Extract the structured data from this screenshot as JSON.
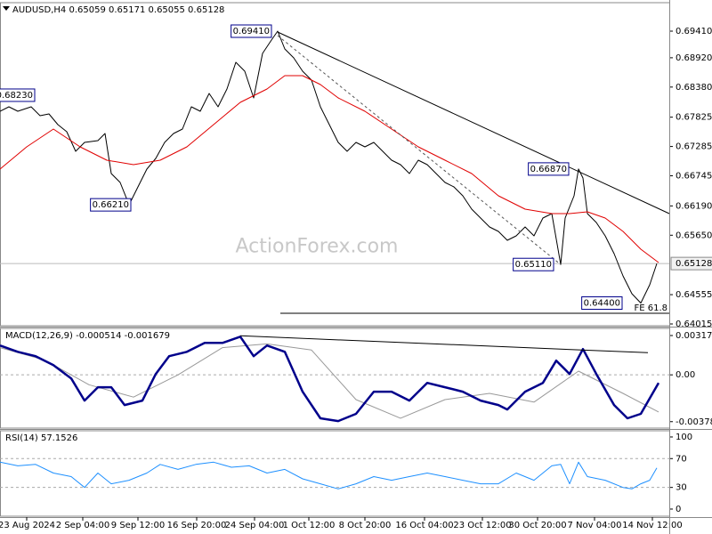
{
  "chart_data": [
    {
      "type": "line",
      "title": "AUDUSD,H4 0.65059 0.65171 0.65055 0.65128",
      "watermark": "ActionForex.com",
      "xlim": [
        0,
        376
      ],
      "ylim": [
        0.63982,
        0.69935
      ],
      "yticks": [
        {
          "value": 0.6941,
          "label": "0.69410"
        },
        {
          "value": 0.6892,
          "label": "0.68920"
        },
        {
          "value": 0.6838,
          "label": "0.68380"
        },
        0.67825,
        0.67285,
        0.66745,
        {
          "value": 0.6619,
          "label": "0.66190"
        },
        {
          "value": 0.6565,
          "label": "0.65650"
        },
        0.64555,
        0.64015
      ],
      "last_price": 0.65128,
      "series": [
        {
          "color": "#000000",
          "width": 1,
          "x": [
            0,
            5,
            10,
            17.5,
            22.5,
            27.5,
            32.5,
            37.5,
            42.5,
            47.5,
            55,
            59,
            62.5,
            67.5,
            72.5,
            77.5,
            82.5,
            87.5,
            92.5,
            97.5,
            102.5,
            107.5,
            112.5,
            117.5,
            122.5,
            127.5,
            132.5,
            137.5,
            142.5,
            147.5,
            152.5,
            156,
            160,
            165,
            170,
            175,
            180,
            185,
            190,
            195,
            200,
            205,
            210,
            215,
            220,
            225,
            230,
            235,
            240,
            245,
            250,
            255,
            260,
            265,
            270,
            275,
            280,
            285,
            290,
            295,
            300,
            305,
            310,
            315,
            317.5,
            322.5,
            325,
            327.5,
            330,
            335,
            340,
            345,
            350,
            355,
            360,
            365,
            369
          ],
          "values": [
            0.67934,
            0.68016,
            0.67934,
            0.68016,
            0.67852,
            0.67885,
            0.67688,
            0.67557,
            0.67196,
            0.6736,
            0.67393,
            0.67524,
            0.66786,
            0.66622,
            0.6621,
            0.6654,
            0.66868,
            0.67065,
            0.6736,
            0.67524,
            0.67606,
            0.68016,
            0.67934,
            0.68262,
            0.68016,
            0.68344,
            0.68836,
            0.68672,
            0.6818,
            0.69,
            0.69246,
            0.6941,
            0.69082,
            0.68918,
            0.68672,
            0.68508,
            0.68016,
            0.67688,
            0.6736,
            0.67196,
            0.6736,
            0.67278,
            0.6736,
            0.67196,
            0.67032,
            0.6695,
            0.66786,
            0.67032,
            0.6695,
            0.66786,
            0.66622,
            0.6654,
            0.66376,
            0.6613,
            0.65966,
            0.65802,
            0.6572,
            0.65556,
            0.65638,
            0.65802,
            0.65638,
            0.65966,
            0.66048,
            0.6511,
            0.65966,
            0.66376,
            0.6687,
            0.66704,
            0.66048,
            0.65884,
            0.65638,
            0.6531,
            0.649,
            0.64572,
            0.644,
            0.64736,
            0.65128
          ]
        },
        {
          "color": "#e00000",
          "width": 1,
          "x": [
            0,
            15,
            30,
            45,
            60,
            75,
            90,
            105,
            120,
            135,
            150,
            160,
            170,
            180,
            190,
            205,
            220,
            235,
            250,
            265,
            280,
            295,
            310,
            320,
            330,
            340,
            350,
            360,
            370
          ],
          "values": [
            0.66868,
            0.67278,
            0.67606,
            0.67278,
            0.67032,
            0.6695,
            0.67032,
            0.67278,
            0.67688,
            0.68098,
            0.68344,
            0.6859,
            0.6859,
            0.68426,
            0.6818,
            0.67934,
            0.67606,
            0.67278,
            0.67032,
            0.66786,
            0.66376,
            0.6613,
            0.66048,
            0.66048,
            0.66081,
            0.65966,
            0.6572,
            0.65392,
            0.65146
          ]
        },
        {
          "color": "#000000",
          "width": 1,
          "x": [
            156,
            376
          ],
          "values": [
            0.69394,
            0.66048
          ]
        },
        {
          "color": "#555555",
          "width": 1,
          "dash": "3,3",
          "x": [
            156,
            315
          ],
          "values": [
            0.69328,
            0.6511
          ]
        },
        {
          "color": "#000000",
          "width": 1,
          "x": [
            157.5,
            376
          ],
          "values": [
            0.64211,
            0.64211
          ],
          "label": "FE 61.8"
        }
      ],
      "annotations": [
        {
          "label": "0.69410",
          "x": 153,
          "y": 0.6941
        },
        {
          "label": "0.68230",
          "x": 20,
          "y": 0.6823
        },
        {
          "label": "0.66210",
          "x": 74,
          "y": 0.6621
        },
        {
          "label": "0.66870",
          "x": 320,
          "y": 0.6687
        },
        {
          "label": "0.65110",
          "x": 311.5,
          "y": 0.6511
        },
        {
          "label": "0.64400",
          "x": 350,
          "y": 0.644
        }
      ]
    },
    {
      "type": "line",
      "title": "MACD(12,26,9) -0.000514 -0.001679",
      "xlim": [
        0,
        376
      ],
      "ylim": [
        -0.0043,
        0.00375
      ],
      "yticks": [
        0.003175,
        {
          "value": 0,
          "label": "0.00"
        },
        -0.00378
      ],
      "levels": [
        0
      ],
      "series": [
        {
          "color": "#999999",
          "width": 1,
          "x": [
            0,
            25,
            50,
            75,
            100,
            125,
            150,
            175,
            200,
            225,
            250,
            275,
            300,
            325,
            350,
            370
          ],
          "values": [
            0.0022,
            0.0012,
            -0.0008,
            -0.0018,
            0,
            0.0022,
            0.0025,
            0.002,
            -0.002,
            -0.0035,
            -0.002,
            -0.0015,
            -0.0022,
            0.0003,
            -0.0015,
            -0.003
          ]
        },
        {
          "color": "#00008b",
          "width": 2.5,
          "x": [
            0,
            10,
            20,
            30,
            40,
            47.5,
            55,
            62.5,
            70,
            80,
            87.5,
            95,
            105,
            115,
            125,
            135,
            142.5,
            150,
            160,
            170,
            180,
            190,
            200,
            210,
            220,
            230,
            240,
            250,
            260,
            270,
            280,
            285,
            295,
            305,
            312.5,
            320,
            327.5,
            335,
            345,
            352.5,
            360,
            370
          ],
          "values": [
            0.00237,
            0.00186,
            0.00151,
            0.00079,
            -0.00029,
            -0.00208,
            -0.001,
            -0.001,
            -0.00244,
            -0.00208,
            7e-05,
            0.00151,
            0.00186,
            0.00258,
            0.00258,
            0.00308,
            0.00151,
            0.00237,
            0.00186,
            -0.00136,
            -0.00351,
            -0.00373,
            -0.00315,
            -0.00136,
            -0.00136,
            -0.00208,
            -0.00065,
            -0.001,
            -0.00136,
            -0.00208,
            -0.00244,
            -0.0028,
            -0.00136,
            -0.00065,
            0.00115,
            7e-05,
            0.00208,
            7e-05,
            -0.00244,
            -0.00351,
            -0.00315,
            -0.00065
          ]
        },
        {
          "color": "#000000",
          "width": 1,
          "x": [
            135,
            364
          ],
          "values": [
            0.00315,
            0.00179
          ]
        }
      ]
    },
    {
      "type": "line",
      "title": "RSI(14) 57.1526",
      "xlim": [
        0,
        376
      ],
      "ylim": [
        -9.9,
        108.6
      ],
      "yticks": [
        100,
        70,
        30,
        0
      ],
      "levels": [
        70,
        30
      ],
      "series": [
        {
          "color": "#1e90ff",
          "width": 1,
          "x": [
            0,
            10,
            20,
            30,
            40,
            47.5,
            55,
            62.5,
            72.5,
            82.5,
            90,
            100,
            110,
            120,
            130,
            140,
            150,
            160,
            170,
            180,
            190,
            200,
            210,
            220,
            230,
            240,
            250,
            260,
            270,
            280,
            290,
            300,
            310,
            315,
            320,
            325,
            330,
            340,
            350,
            355,
            360,
            365,
            369
          ],
          "values": [
            65,
            60,
            62,
            50,
            45,
            30,
            50,
            35,
            40,
            50,
            62,
            55,
            62,
            65,
            58,
            60,
            50,
            55,
            42,
            35,
            28,
            35,
            45,
            40,
            45,
            50,
            45,
            40,
            35,
            35,
            50,
            40,
            60,
            62,
            35,
            65,
            45,
            40,
            30,
            28,
            35,
            40,
            57
          ]
        }
      ],
      "xticks": [
        {
          "value": 15,
          "label": "23 Aug 2024"
        },
        {
          "value": 46.5,
          "label": "2 Sep 04:00"
        },
        {
          "value": 77.5,
          "label": "9 Sep 12:00"
        },
        {
          "value": 110.5,
          "label": "16 Sep 20:00"
        },
        {
          "value": 143,
          "label": "24 Sep 04:00"
        },
        {
          "value": 173.5,
          "label": "1 Oct 12:00"
        },
        {
          "value": 205,
          "label": "8 Oct 20:00"
        },
        {
          "value": 238.5,
          "label": "16 Oct 04:00"
        },
        {
          "value": 271,
          "label": "23 Oct 12:00"
        },
        {
          "value": 302,
          "label": "30 Oct 20:00"
        },
        {
          "value": 334,
          "label": "7 Nov 04:00"
        },
        {
          "value": 366.5,
          "label": "14 Nov 12:00"
        }
      ]
    }
  ]
}
